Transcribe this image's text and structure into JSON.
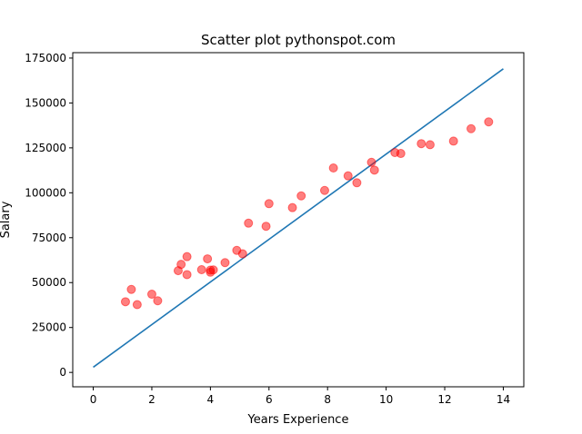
{
  "chart_data": {
    "type": "scatter",
    "title": "Scatter plot pythonspot.com",
    "xlabel": "Years Experience",
    "ylabel": "Salary",
    "xlim": [
      -0.7,
      14.7
    ],
    "ylim": [
      -8000,
      178000
    ],
    "xticks": [
      0,
      2,
      4,
      6,
      8,
      10,
      12,
      14
    ],
    "yticks": [
      0,
      25000,
      50000,
      75000,
      100000,
      125000,
      150000,
      175000
    ],
    "grid": false,
    "points_color": "#ff0000",
    "line_color": "#1f77b4",
    "points": {
      "x": [
        1.1,
        1.3,
        1.5,
        2.0,
        2.2,
        2.9,
        3.0,
        3.2,
        3.2,
        3.7,
        3.9,
        4.0,
        4.0,
        4.1,
        4.5,
        4.9,
        5.1,
        5.3,
        5.9,
        6.0,
        6.8,
        7.1,
        7.9,
        8.2,
        8.7,
        9.0,
        9.5,
        9.6,
        10.3,
        10.5,
        11.2,
        11.5,
        12.3,
        12.9,
        13.5
      ],
      "y": [
        39343,
        46205,
        37731,
        43525,
        39891,
        56642,
        60150,
        54445,
        64445,
        57189,
        63218,
        55794,
        56957,
        57081,
        61111,
        67938,
        66029,
        83088,
        81363,
        93940,
        91738,
        98273,
        101302,
        113812,
        109431,
        105582,
        116969,
        112635,
        122391,
        121872,
        127345,
        126756,
        128765,
        135675,
        139465
      ]
    },
    "regression_line": {
      "x": [
        0,
        14
      ],
      "y": [
        2900,
        169000
      ]
    }
  }
}
